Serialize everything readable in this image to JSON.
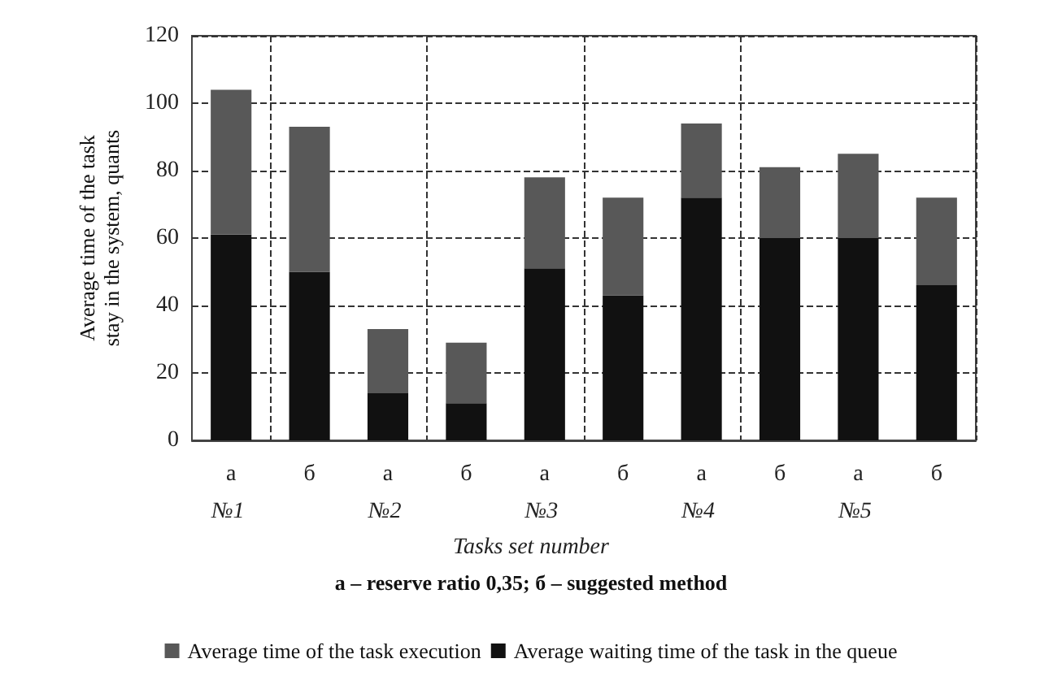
{
  "chart_data": {
    "type": "bar",
    "stacked": true,
    "xlabel": "Tasks set number",
    "ylabel": "Average time of the task\nstay in the system, quants",
    "categories": [
      "a",
      "б",
      "a",
      "б",
      "a",
      "б",
      "a",
      "б",
      "a",
      "б"
    ],
    "series": [
      {
        "name": "Average waiting time of the task in the queue",
        "color": "#111111",
        "values": [
          61,
          50,
          14,
          11,
          51,
          43,
          72,
          60,
          60,
          46
        ]
      },
      {
        "name": "Average time of the task execution",
        "color": "#585858",
        "values": [
          43,
          43,
          19,
          18,
          27,
          29,
          22,
          21,
          25,
          26
        ]
      }
    ],
    "ylim": [
      0,
      120
    ],
    "yticks": [
      0,
      20,
      40,
      60,
      80,
      100,
      120
    ],
    "grid": true,
    "legend": "bottom",
    "annotations": [
      "№1",
      "№2",
      "№3",
      "№4",
      "№5",
      "a – reserve ratio 0,35; б – suggested method"
    ]
  }
}
